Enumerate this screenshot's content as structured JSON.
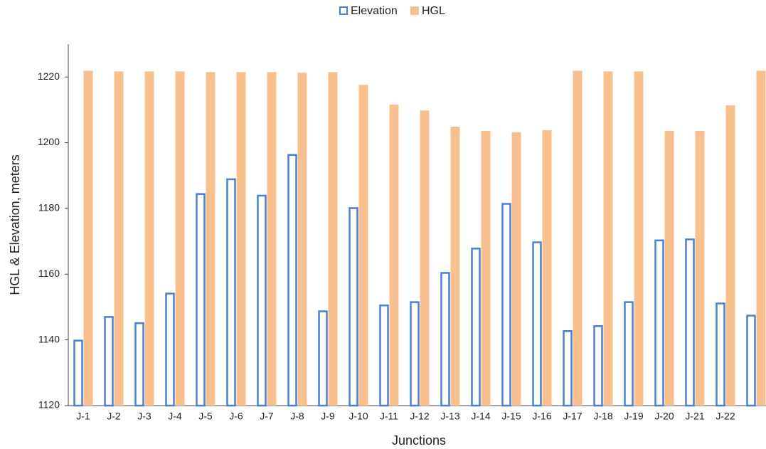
{
  "chart_data": {
    "type": "bar",
    "x_label": "Junctions",
    "y_label": "HGL & Elevation, meters",
    "categories": [
      "J-1",
      "J-2",
      "J-3",
      "J-4",
      "J-5",
      "J-6",
      "J-7",
      "J-8",
      "J-9",
      "J-10",
      "J-11",
      "J-12",
      "J-13",
      "J-14",
      "J-15",
      "J-16",
      "J-17",
      "J-18",
      "J-19",
      "J-20",
      "J-21",
      "J-22",
      null
    ],
    "series": [
      {
        "name": "Elevation",
        "color": "#4a7fd4",
        "values": [
          1140,
          1147.2,
          1145.3,
          1154.3,
          1184.6,
          1189.1,
          1184.1,
          1196.5,
          1148.9,
          1180.3,
          1150.7,
          1151.7,
          1160.6,
          1168,
          1181.6,
          1169.9,
          1142.9,
          1144.4,
          1151.7,
          1170.5,
          1170.8,
          1151.3,
          1147.6
        ]
      },
      {
        "name": "HGL",
        "color": "#f9c08f",
        "values": [
          1221.9,
          1221.7,
          1221.7,
          1221.7,
          1221.5,
          1221.5,
          1221.5,
          1221.3,
          1221.5,
          1217.6,
          1211.6,
          1209.8,
          1204.9,
          1203.6,
          1203.2,
          1203.8,
          1221.9,
          1221.7,
          1221.7,
          1203.6,
          1203.6,
          1211.4,
          1221.9
        ]
      }
    ],
    "ylim": [
      1120,
      1230
    ],
    "yticks": [
      1120,
      1140,
      1160,
      1180,
      1200,
      1220
    ],
    "grid": false,
    "legend": "top"
  }
}
